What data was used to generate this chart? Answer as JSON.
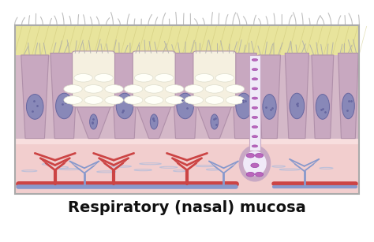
{
  "title": "Respiratory (nasal) mucosa",
  "title_fontsize": 14,
  "title_fontweight": "bold",
  "bg_color": "#ffffff",
  "mucus_layer_color": "#e8e49c",
  "epithelial_layer_color": "#d4b8c8",
  "lamina_propria_color": "#f2cece",
  "cell_body_color": "#c8a8c0",
  "cell_border_color": "#b090aa",
  "nucleus_color": "#8888b8",
  "nucleus_border": "#6666a0",
  "goblet_fill_color": "#f5f0e0",
  "goblet_bubble_color": "#fffff0",
  "cilia_color": "#aaaaaa",
  "blood_vessel_red": "#cc4444",
  "blood_vessel_blue": "#8899cc",
  "nerve_body_color": "#c8a8c4",
  "nerve_fill_color": "#f0eaf8",
  "nerve_spots_color": "#bb66bb",
  "outline_color": "#999999",
  "separator_color": "#ddbbcc",
  "fiber_color": "#aabbdd"
}
